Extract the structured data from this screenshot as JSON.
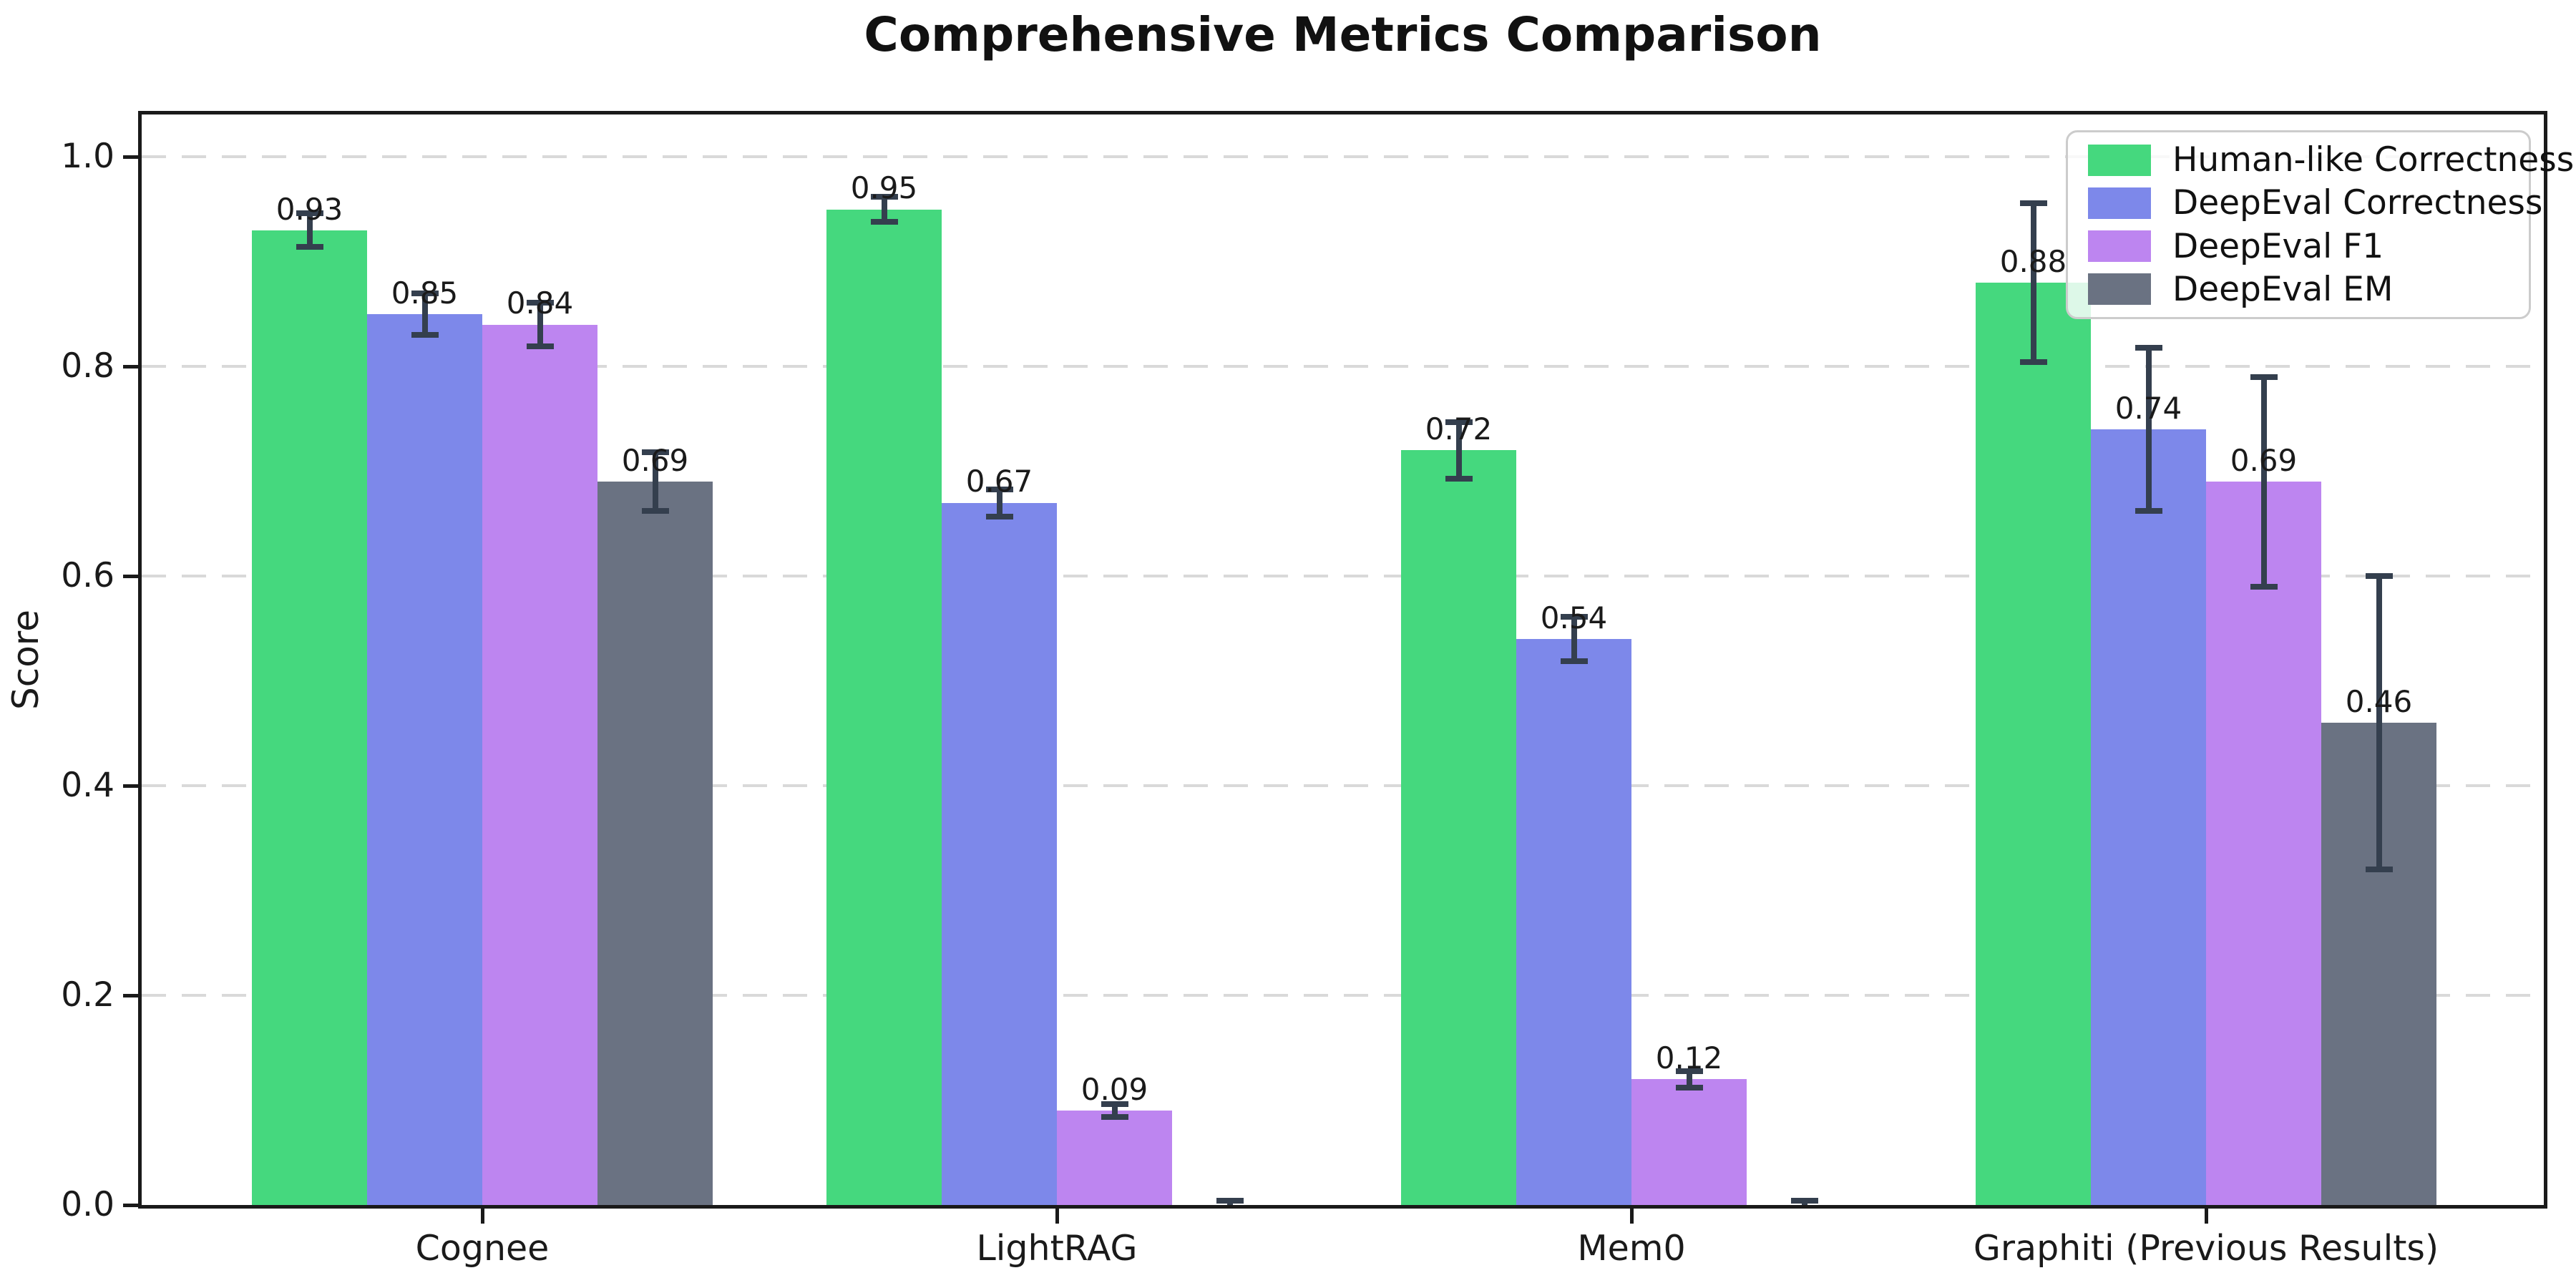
{
  "chart_data": {
    "type": "bar",
    "title": "Comprehensive Metrics Comparison",
    "ylabel": "Score",
    "xlabel": "",
    "categories": [
      "Cognee",
      "LightRAG",
      "Mem0",
      "Graphiti (Previous Results)"
    ],
    "series": [
      {
        "name": "Human-like Correctness",
        "color": "#45d87e",
        "values": [
          0.93,
          0.95,
          0.72,
          0.88
        ],
        "errors": [
          0.016,
          0.012,
          0.027,
          0.076
        ],
        "labels": [
          "0.93",
          "0.95",
          "0.72",
          "0.88"
        ]
      },
      {
        "name": "DeepEval Correctness",
        "color": "#7d88ea",
        "values": [
          0.85,
          0.67,
          0.54,
          0.74
        ],
        "errors": [
          0.02,
          0.013,
          0.021,
          0.078
        ],
        "labels": [
          "0.85",
          "0.67",
          "0.54",
          "0.74"
        ]
      },
      {
        "name": "DeepEval F1",
        "color": "#bd85f0",
        "values": [
          0.84,
          0.09,
          0.12,
          0.69
        ],
        "errors": [
          0.021,
          0.006,
          0.008,
          0.1
        ],
        "labels": [
          "0.84",
          "0.09",
          "0.12",
          "0.69"
        ]
      },
      {
        "name": "DeepEval EM",
        "color": "#6a7282",
        "values": [
          0.69,
          0.0,
          0.0,
          0.46
        ],
        "errors": [
          0.028,
          0.004,
          0.004,
          0.14
        ],
        "labels": [
          "0.69",
          "",
          "",
          "0.46"
        ]
      }
    ],
    "yticks": [
      0.0,
      0.2,
      0.4,
      0.6,
      0.8,
      1.0
    ],
    "ytick_labels": [
      "0.0",
      "0.2",
      "0.4",
      "0.6",
      "0.8",
      "1.0"
    ],
    "ylim": [
      0,
      1.04
    ],
    "grid": "horizontal dashed",
    "legend_position": "upper right",
    "colors": {
      "axis": "#1a1a1a",
      "grid": "#d9d9d9",
      "error_bar": "#343f4e",
      "background": "#ffffff"
    }
  }
}
